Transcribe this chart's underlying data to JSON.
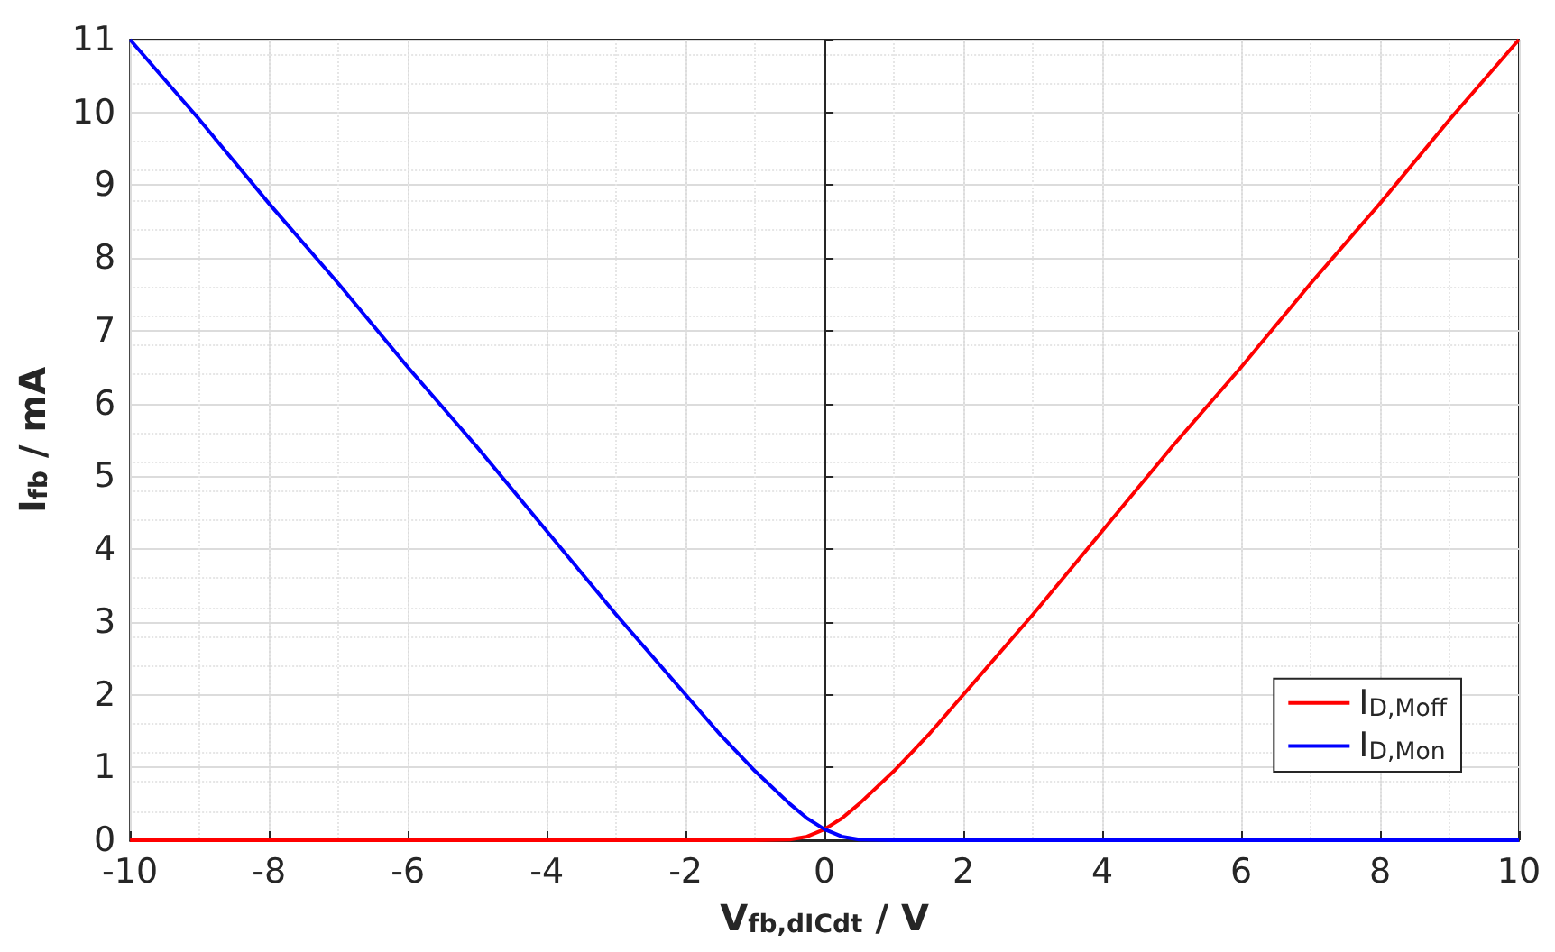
{
  "chart_data": {
    "type": "line",
    "xlabel": "V$_{fb,dICdt}$ / V",
    "ylabel": "I$_{fb}$ / mA",
    "xlim": [
      -10,
      10
    ],
    "xticks": [
      -10,
      -8,
      -6,
      -4,
      -2,
      0,
      2,
      4,
      6,
      8,
      10
    ],
    "ylim": [
      0,
      11
    ],
    "yticks": [
      0,
      1,
      2,
      3,
      4,
      5,
      6,
      7,
      8,
      9,
      10,
      11
    ],
    "grid": true,
    "legend": "bottom right",
    "marker": "none",
    "line_style": "solid",
    "series": [
      {
        "name": "I$_{D,Moff}$",
        "color": "#ff0000",
        "x": [
          -10,
          -8,
          -6,
          -4,
          -2,
          -1,
          -0.5,
          -0.25,
          0,
          0.25,
          0.5,
          1,
          1.5,
          2,
          3,
          4,
          5,
          6,
          7,
          8,
          9,
          10
        ],
        "values": [
          0,
          0,
          0,
          0,
          0,
          0,
          0.01,
          0.05,
          0.15,
          0.3,
          0.5,
          0.95,
          1.45,
          2,
          3.1,
          4.25,
          5.4,
          6.5,
          7.65,
          8.75,
          9.9,
          11
        ]
      },
      {
        "name": "I$_{D,Mon}$",
        "color": "#0000ff",
        "x": [
          -10,
          -9,
          -8,
          -7,
          -6,
          -5,
          -4,
          -3,
          -2,
          -1.5,
          -1,
          -0.5,
          -0.25,
          0,
          0.25,
          0.5,
          1,
          2,
          4,
          6,
          8,
          10
        ],
        "values": [
          11,
          9.9,
          8.75,
          7.65,
          6.5,
          5.4,
          4.25,
          3.1,
          2,
          1.45,
          0.95,
          0.5,
          0.3,
          0.15,
          0.05,
          0.01,
          0,
          0,
          0,
          0,
          0,
          0
        ]
      }
    ]
  }
}
